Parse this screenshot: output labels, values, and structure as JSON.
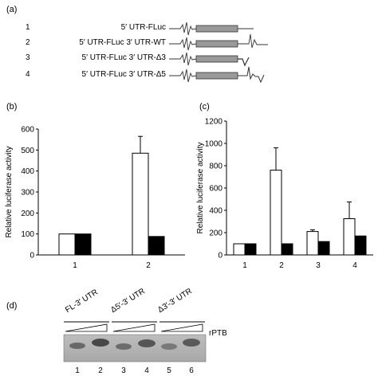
{
  "panel_labels": {
    "a": "(a)",
    "b": "(b)",
    "c": "(c)",
    "d": "(d)"
  },
  "constructs": [
    {
      "num": "1",
      "name": "5′ UTR-FLuc",
      "has_3utr": false,
      "tail": "none"
    },
    {
      "num": "2",
      "name": "5′ UTR-FLuc 3′ UTR-WT",
      "has_3utr": true,
      "tail": "full"
    },
    {
      "num": "3",
      "name": "5′ UTR-FLuc 3′ UTR-Δ3",
      "has_3utr": true,
      "tail": "v"
    },
    {
      "num": "4",
      "name": "5′ UTR-FLuc 3′ UTR-Δ5",
      "has_3utr": true,
      "tail": "partial-v"
    }
  ],
  "chart_data": [
    {
      "type": "bar",
      "panel": "(b)",
      "ylabel": "Relative luciferase activity",
      "ylim": [
        0,
        600
      ],
      "yticks": [
        "0",
        "100",
        "200",
        "300",
        "400",
        "500",
        "600"
      ],
      "categories": [
        "1",
        "2"
      ],
      "series": [
        {
          "color": "#ffffff",
          "values": [
            100,
            485
          ],
          "errors": [
            0,
            80
          ]
        },
        {
          "color": "#000000",
          "values": [
            100,
            88
          ],
          "errors": [
            0,
            0
          ]
        }
      ]
    },
    {
      "type": "bar",
      "panel": "(c)",
      "ylabel": "Relative luciferase activity",
      "ylim": [
        0,
        1200
      ],
      "yticks": [
        "0",
        "200",
        "400",
        "600",
        "800",
        "1000",
        "1200"
      ],
      "categories": [
        "1",
        "2",
        "3",
        "4"
      ],
      "series": [
        {
          "color": "#ffffff",
          "values": [
            100,
            760,
            210,
            325
          ],
          "errors": [
            0,
            200,
            15,
            150
          ]
        },
        {
          "color": "#000000",
          "values": [
            100,
            100,
            120,
            170
          ],
          "errors": [
            0,
            0,
            0,
            0
          ]
        }
      ]
    }
  ],
  "gel": {
    "groups": [
      "FL-3′ UTR",
      "Δ5′-3′ UTR",
      "Δ3′-3′ UTR"
    ],
    "side_label": "rPTB",
    "lanes": [
      "1",
      "2",
      "3",
      "4",
      "5",
      "6"
    ]
  }
}
